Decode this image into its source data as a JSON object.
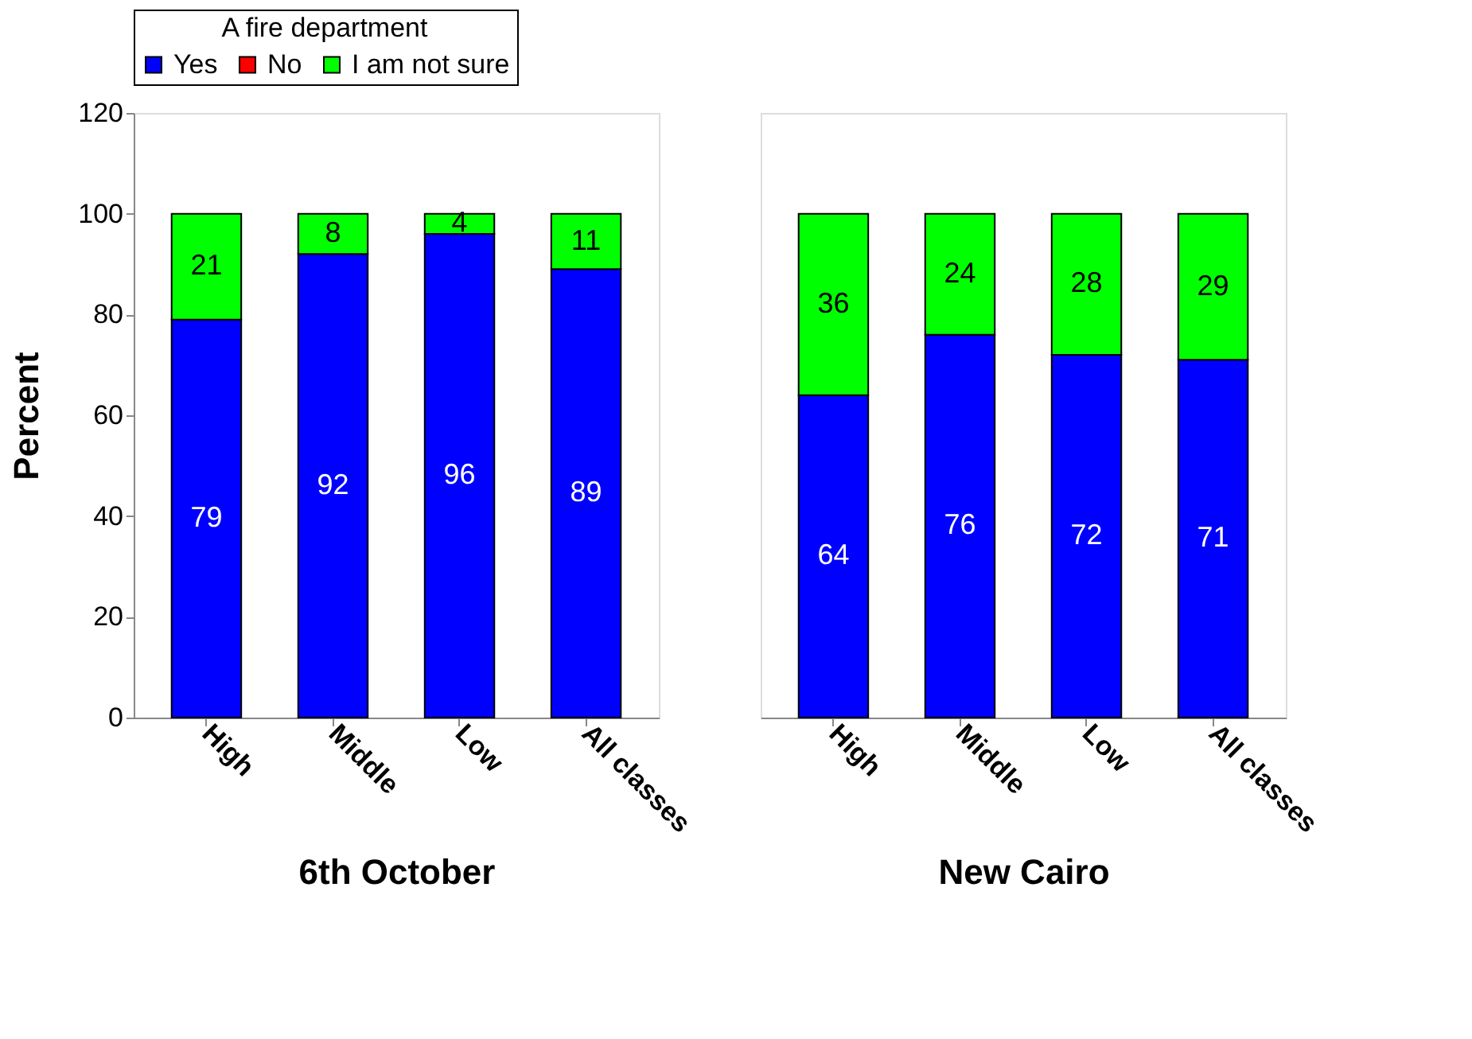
{
  "chart_data": [
    {
      "type": "bar",
      "stacked": true,
      "legend_title": "A fire department",
      "legend": "top",
      "ylabel": "Percent",
      "xlabel": "6th October",
      "categories": [
        "High",
        "Middle",
        "Low",
        "All classes"
      ],
      "ylim": [
        0,
        120
      ],
      "yticks": [
        0,
        20,
        40,
        60,
        80,
        100,
        120
      ],
      "grid": false,
      "series": [
        {
          "name": "Yes",
          "color": "#0000ff",
          "values": [
            79,
            92,
            96,
            89
          ],
          "value_labels": [
            "79",
            "92",
            "96",
            "89"
          ]
        },
        {
          "name": "No",
          "color": "#ff0000",
          "values": [
            null,
            null,
            null,
            null
          ],
          "value_labels": [
            null,
            null,
            null,
            null
          ]
        },
        {
          "name": "I am not sure",
          "color": "#00ff00",
          "values": [
            21,
            8,
            4,
            11
          ],
          "value_labels": [
            "21",
            "8",
            "4",
            "11"
          ]
        }
      ]
    },
    {
      "type": "bar",
      "stacked": true,
      "legend": false,
      "xlabel": "New Cairo",
      "categories": [
        "High",
        "Middle",
        "Low",
        "All classes"
      ],
      "ylim": [
        0,
        120
      ],
      "yticks": [
        0,
        20,
        40,
        60,
        80,
        100,
        120
      ],
      "grid": false,
      "tick_labels": "x",
      "series": [
        {
          "color": "#0000ff",
          "values": [
            64,
            76,
            72,
            71
          ],
          "value_labels": [
            "64",
            "76",
            "72",
            "71"
          ]
        },
        {
          "color": "#ff0000",
          "values": [
            null,
            null,
            null,
            null
          ],
          "value_labels": [
            null,
            null,
            null,
            null
          ]
        },
        {
          "color": "#00ff00",
          "values": [
            36,
            24,
            28,
            29
          ],
          "value_labels": [
            "36",
            "24",
            "28",
            "29"
          ]
        }
      ]
    }
  ]
}
